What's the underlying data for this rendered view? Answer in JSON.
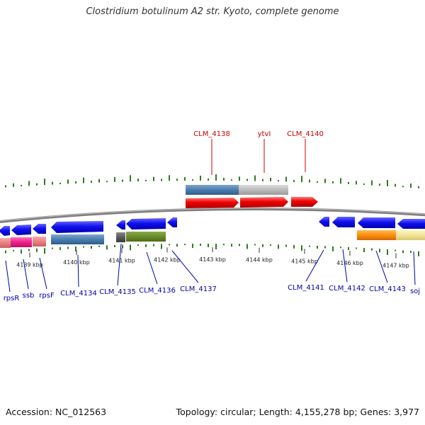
{
  "header": {
    "title": "Clostridium botulinum A2 str. Kyoto, complete genome"
  },
  "footer": {
    "accession": "Accession: NC_012563",
    "topology": "Topology: circular; Length: 4,155,278 bp; Genes: 3,977"
  },
  "scale": {
    "ticks": [
      "4139 kbp",
      "4140 kbp",
      "4141 kbp",
      "4142 kbp",
      "4143 kbp",
      "4144 kbp",
      "4145 kbp",
      "4146 kbp",
      "4147 kbp"
    ]
  },
  "colors": {
    "backbone": "#7f7f7f",
    "forward_label": "#cc0000",
    "reverse_label": "#0000aa",
    "gc_tick": "#2e7d1e",
    "cds_blue": "#1010e0",
    "cds_red": "#ee0000"
  },
  "forward_labels": [
    "CLM_4138",
    "ytvI",
    "CLM_4140"
  ],
  "reverse_labels": [
    "rpsR",
    "ssb",
    "rpsF",
    "CLM_4134",
    "CLM_4135",
    "CLM_4136",
    "CLM_4137",
    "CLM_4141",
    "CLM_4142",
    "CLM_4143",
    "soj"
  ]
}
